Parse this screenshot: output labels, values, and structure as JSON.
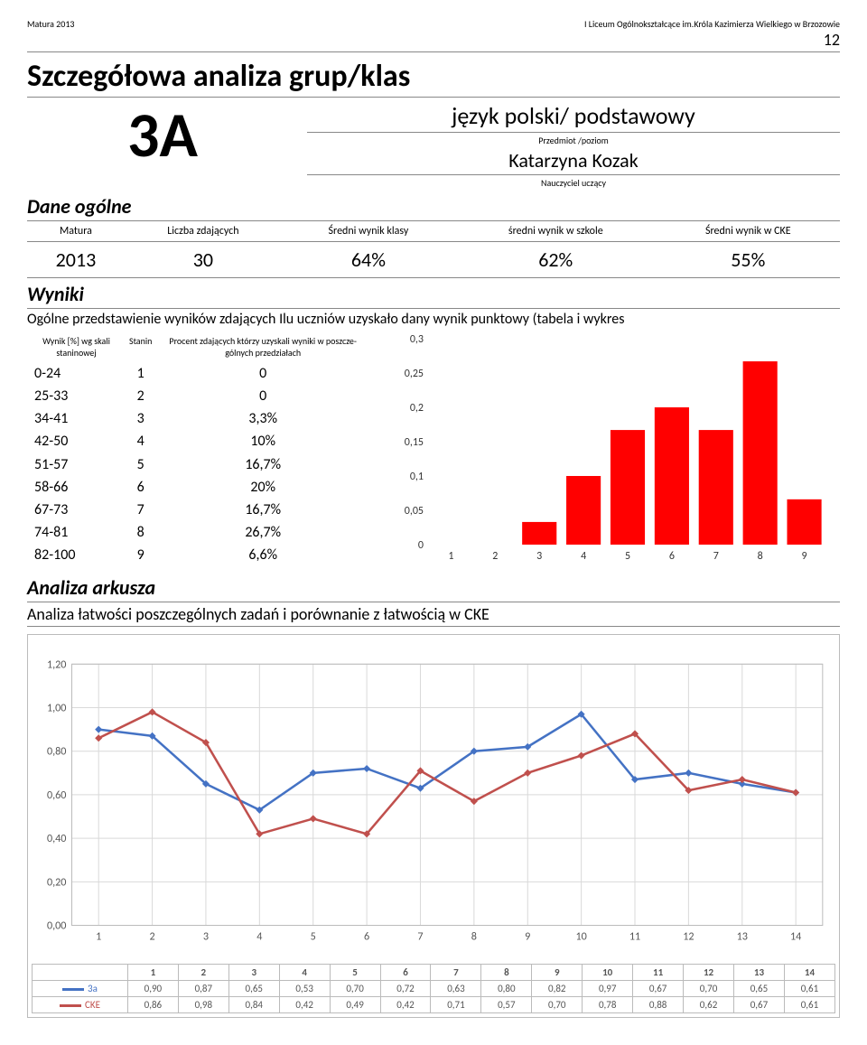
{
  "header": {
    "left": "Matura 2013",
    "right": "I Liceum Ogólnokształcące im.Króla Kazimierza Wielkiego w Brzozowie",
    "page_number": "12"
  },
  "title": "Szczegółowa analiza grup/klas",
  "class_code": "3A",
  "subject": {
    "name": "język polski/ podstawowy",
    "level_label": "Przedmiot /poziom",
    "teacher": "Katarzyna Kozak",
    "teacher_label": "Nauczyciel uczący"
  },
  "general": {
    "section_label": "Dane ogólne",
    "columns": [
      "Matura",
      "Liczba zdających",
      "Średni wynik klasy",
      "średni wynik w szkole",
      "Średni wynik w CKE"
    ],
    "row": [
      "2013",
      "30",
      "64%",
      "62%",
      "55%"
    ]
  },
  "wyniki": {
    "label": "Wyniki",
    "desc": "Ogólne przedstawienie wyników zdających Ilu uczniów uzyskało dany wynik punktowy (tabela i wykres",
    "table": {
      "columns": [
        "Wynik [%] wg skali staninowej",
        "Stanin",
        "Procent zdających którzy uzyskali wyniki w poszcze- gólnych przedziałach"
      ],
      "rows": [
        [
          "0-24",
          "1",
          "0"
        ],
        [
          "25-33",
          "2",
          "0"
        ],
        [
          "34-41",
          "3",
          "3,3%"
        ],
        [
          "42-50",
          "4",
          "10%"
        ],
        [
          "51-57",
          "5",
          "16,7%"
        ],
        [
          "58-66",
          "6",
          "20%"
        ],
        [
          "67-73",
          "7",
          "16,7%"
        ],
        [
          "74-81",
          "8",
          "26,7%"
        ],
        [
          "82-100",
          "9",
          "6,6%"
        ]
      ]
    },
    "bar_chart": {
      "type": "bar",
      "categories": [
        "1",
        "2",
        "3",
        "4",
        "5",
        "6",
        "7",
        "8",
        "9"
      ],
      "values": [
        0,
        0,
        0.033,
        0.1,
        0.167,
        0.2,
        0.167,
        0.267,
        0.066
      ],
      "bar_color": "#ff0000",
      "y_ticks": [
        0,
        0.05,
        0.1,
        0.15,
        0.2,
        0.25,
        0.3
      ],
      "y_labels": [
        "0",
        "0,05",
        "0,1",
        "0,15",
        "0,2",
        "0,25",
        "0,3"
      ],
      "background_color": "#ffffff",
      "label_fontsize": 12
    }
  },
  "analiza": {
    "heading": "Analiza arkusza",
    "desc": "Analiza łatwości poszczególnych zadań i porównanie z łatwością w CKE",
    "line_chart": {
      "type": "line",
      "x_labels": [
        "1",
        "2",
        "3",
        "4",
        "5",
        "6",
        "7",
        "8",
        "9",
        "10",
        "11",
        "12",
        "13",
        "14"
      ],
      "y_ticks": [
        0,
        0.2,
        0.4,
        0.6,
        0.8,
        1.0,
        1.2
      ],
      "y_labels": [
        "0,00",
        "0,20",
        "0,40",
        "0,60",
        "0,80",
        "1,00",
        "1,20"
      ],
      "series": [
        {
          "name": "3a",
          "color": "#4472c4",
          "values": [
            0.9,
            0.87,
            0.65,
            0.53,
            0.7,
            0.72,
            0.63,
            0.8,
            0.82,
            0.97,
            0.67,
            0.7,
            0.65,
            0.61
          ]
        },
        {
          "name": "CKE",
          "color": "#c0504d",
          "values": [
            0.86,
            0.98,
            0.84,
            0.42,
            0.49,
            0.42,
            0.71,
            0.57,
            0.7,
            0.78,
            0.88,
            0.62,
            0.67,
            0.61
          ]
        }
      ],
      "grid_color": "#d9d9d9",
      "axis_color": "#888888",
      "marker_style": "diamond",
      "line_width": 2.5
    }
  }
}
